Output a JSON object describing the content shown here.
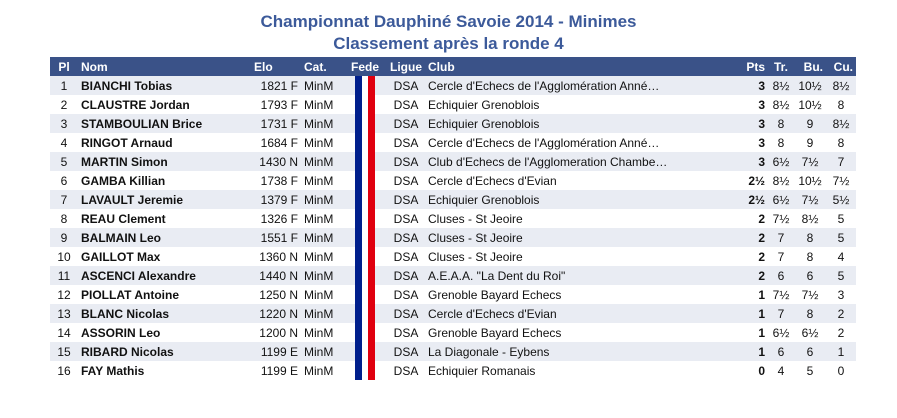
{
  "title": "Championnat Dauphiné Savoie 2014 - Minimes",
  "subtitle": "Classement après la ronde 4",
  "headers": {
    "pl": "Pl",
    "nom": "Nom",
    "elo": "Elo",
    "cat": "Cat.",
    "fede": "Fede",
    "ligue": "Ligue",
    "club": "Club",
    "pts": "Pts",
    "tr": "Tr.",
    "bu": "Bu.",
    "cu": "Cu."
  },
  "flag_colors": [
    "#001f8c",
    "#ffffff",
    "#e0000f"
  ],
  "rows": [
    [
      "1",
      "BIANCHI Tobias",
      "1821 F",
      "MinM",
      "DSA",
      "Cercle d'Echecs de l'Agglomération Anné…",
      "3",
      "8½",
      "10½",
      "8½"
    ],
    [
      "2",
      "CLAUSTRE Jordan",
      "1793 F",
      "MinM",
      "DSA",
      "Echiquier Grenoblois",
      "3",
      "8½",
      "10½",
      "8"
    ],
    [
      "3",
      "STAMBOULIAN Brice",
      "1731 F",
      "MinM",
      "DSA",
      "Echiquier Grenoblois",
      "3",
      "8",
      "9",
      "8½"
    ],
    [
      "4",
      "RINGOT Arnaud",
      "1684 F",
      "MinM",
      "DSA",
      "Cercle d'Echecs de l'Agglomération Anné…",
      "3",
      "8",
      "9",
      "8"
    ],
    [
      "5",
      "MARTIN Simon",
      "1430 N",
      "MinM",
      "DSA",
      "Club d'Echecs de l'Agglomeration Chambe…",
      "3",
      "6½",
      "7½",
      "7"
    ],
    [
      "6",
      "GAMBA Killian",
      "1738 F",
      "MinM",
      "DSA",
      "Cercle d'Echecs d'Evian",
      "2½",
      "8½",
      "10½",
      "7½"
    ],
    [
      "7",
      "LAVAULT Jeremie",
      "1379 F",
      "MinM",
      "DSA",
      "Echiquier Grenoblois",
      "2½",
      "6½",
      "7½",
      "5½"
    ],
    [
      "8",
      "REAU Clement",
      "1326 F",
      "MinM",
      "DSA",
      "Cluses - St Jeoire",
      "2",
      "7½",
      "8½",
      "5"
    ],
    [
      "9",
      "BALMAIN Leo",
      "1551 F",
      "MinM",
      "DSA",
      "Cluses - St Jeoire",
      "2",
      "7",
      "8",
      "5"
    ],
    [
      "10",
      "GAILLOT Max",
      "1360 N",
      "MinM",
      "DSA",
      "Cluses - St Jeoire",
      "2",
      "7",
      "8",
      "4"
    ],
    [
      "11",
      "ASCENCI Alexandre",
      "1440 N",
      "MinM",
      "DSA",
      "A.E.A.A. \"La Dent du Roi\"",
      "2",
      "6",
      "6",
      "5"
    ],
    [
      "12",
      "PIOLLAT Antoine",
      "1250 N",
      "MinM",
      "DSA",
      "Grenoble Bayard Echecs",
      "1",
      "7½",
      "7½",
      "3"
    ],
    [
      "13",
      "BLANC Nicolas",
      "1220 N",
      "MinM",
      "DSA",
      "Cercle d'Echecs d'Evian",
      "1",
      "7",
      "8",
      "2"
    ],
    [
      "14",
      "ASSORIN Leo",
      "1200 N",
      "MinM",
      "DSA",
      "Grenoble Bayard Echecs",
      "1",
      "6½",
      "6½",
      "2"
    ],
    [
      "15",
      "RIBARD Nicolas",
      "1199 E",
      "MinM",
      "DSA",
      "La Diagonale - Eybens",
      "1",
      "6",
      "6",
      "1"
    ],
    [
      "16",
      "FAY Mathis",
      "1199 E",
      "MinM",
      "DSA",
      "Echiquier Romanais",
      "0",
      "4",
      "5",
      "0"
    ]
  ]
}
